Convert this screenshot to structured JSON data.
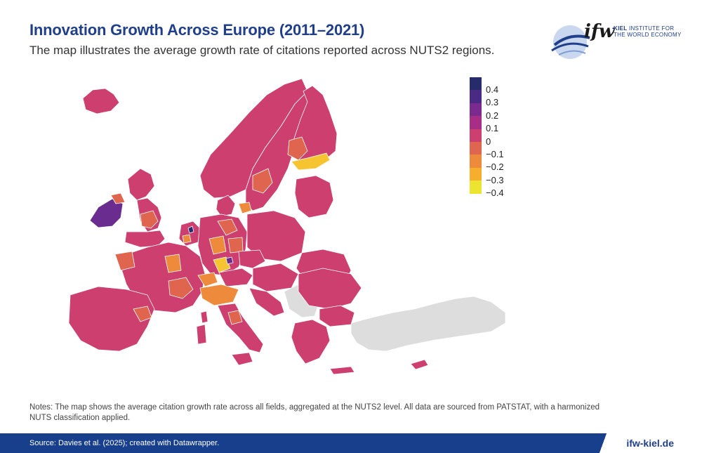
{
  "header": {
    "title": "Innovation Growth Across Europe (2011–2021)",
    "subtitle": "The map illustrates the average growth rate of citations reported across NUTS2 regions."
  },
  "logo": {
    "name": "ifw",
    "tag_bold": "KIEL",
    "tag_line1": " INSTITUTE FOR",
    "tag_line2": "THE WORLD ECONOMY"
  },
  "legend": {
    "items": [
      {
        "label": "0.4",
        "color": "#262c6b"
      },
      {
        "label": "0.3",
        "color": "#4b2a86"
      },
      {
        "label": "0.2",
        "color": "#7b2b8f"
      },
      {
        "label": "0.1",
        "color": "#a82d86"
      },
      {
        "label": "0",
        "color": "#cc3f6e"
      },
      {
        "label": "−0.1",
        "color": "#e0654f"
      },
      {
        "label": "−0.2",
        "color": "#ee8a3c"
      },
      {
        "label": "−0.3",
        "color": "#f7ae2f"
      },
      {
        "label": "−0.4",
        "color": "#ede432"
      }
    ]
  },
  "map": {
    "region_colors": {
      "base": "#cc3f6e",
      "no_data": "#dddddd",
      "ireland": "#6a2c8e",
      "hotspot": "#262c6b",
      "negative_light": "#e0654f",
      "negative_medium": "#ee8a3c",
      "negative_strong": "#f7c431"
    }
  },
  "notes": "Notes: The map shows the average citation growth rate across all fields, aggregated at the NUTS2 level. All data are sourced from PATSTAT, with a harmonized NUTS classification applied.",
  "footer": {
    "source": "Source: Davies et al. (2025); created with Datawrapper.",
    "site": "ifw-kiel.de"
  }
}
